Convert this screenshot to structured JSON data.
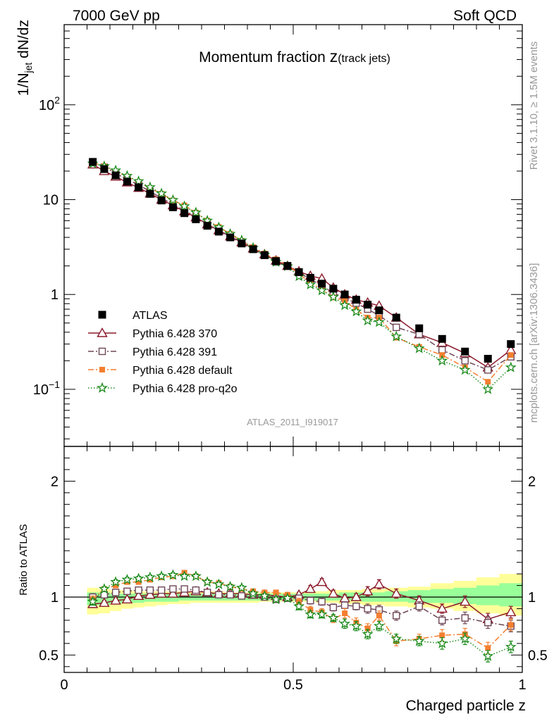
{
  "header": {
    "left_label": "7000 GeV pp",
    "right_label": "Soft QCD",
    "title_main": "Momentum fraction ",
    "title_symbol": "z",
    "title_sub": "(track jets)",
    "analysis_id": "ATLAS_2011_I919017",
    "side_rivet": "Rivet 3.1.10, ≥ 1.5M events",
    "side_mcplots": "mcplots.cern.ch [arXiv:1306.3436]"
  },
  "colors": {
    "atlas": "#000000",
    "p370": "#8b1a2b",
    "p391": "#6e4656",
    "pdefault": "#f47f30",
    "pq2o": "#1a8a1a",
    "band_outer": "#ffff99",
    "band_inner": "#99ff99"
  },
  "chart_data": [
    {
      "type": "scatter",
      "panel": "main",
      "ylabel_main": "1/N",
      "ylabel_sub": "jet",
      "ylabel_rest": " dN/dz",
      "yscale": "log",
      "xlim": [
        0,
        1
      ],
      "ylim": [
        0.025,
        700
      ],
      "y_ticks": [
        {
          "value": 0.1,
          "label_base": "10",
          "label_exp": "−1"
        },
        {
          "value": 1,
          "label_base": "1",
          "label_exp": ""
        },
        {
          "value": 10,
          "label_base": "10",
          "label_exp": ""
        },
        {
          "value": 100,
          "label_base": "10",
          "label_exp": "2"
        }
      ],
      "x": [
        0.0625,
        0.0875,
        0.1125,
        0.1375,
        0.1625,
        0.1875,
        0.2125,
        0.2375,
        0.2625,
        0.2875,
        0.3125,
        0.3375,
        0.3625,
        0.3875,
        0.4125,
        0.4375,
        0.4625,
        0.4875,
        0.5125,
        0.5375,
        0.5625,
        0.5875,
        0.6125,
        0.6375,
        0.6625,
        0.6875,
        0.725,
        0.775,
        0.825,
        0.875,
        0.925,
        0.975
      ],
      "legend_position": "center-left",
      "series": [
        {
          "name": "ATLAS",
          "key": "atlas",
          "marker": "square-filled",
          "values": [
            25,
            21,
            18,
            15.5,
            13.5,
            11.5,
            9.8,
            8.3,
            7.2,
            6.2,
            5.3,
            4.6,
            4.0,
            3.45,
            3.0,
            2.6,
            2.25,
            2.0,
            1.72,
            1.5,
            1.3,
            1.15,
            1.0,
            0.88,
            0.78,
            0.68,
            0.57,
            0.44,
            0.34,
            0.25,
            0.21,
            0.3
          ]
        },
        {
          "name": "Pythia 6.428 370",
          "key": "p370",
          "marker": "triangle-open",
          "line": "solid",
          "values": [
            23.5,
            20,
            17.5,
            15.2,
            13.3,
            11.6,
            10.0,
            8.7,
            7.5,
            6.5,
            5.5,
            4.75,
            4.1,
            3.55,
            3.05,
            2.65,
            2.28,
            2.0,
            1.75,
            1.57,
            1.47,
            1.18,
            1.0,
            0.88,
            0.82,
            0.76,
            0.57,
            0.38,
            0.31,
            0.24,
            0.17,
            0.26
          ]
        },
        {
          "name": "Pythia 6.428 391",
          "key": "p391",
          "marker": "square-open",
          "line": "dashdot",
          "values": [
            25,
            22,
            19,
            16.3,
            14.3,
            12.2,
            10.4,
            8.9,
            7.7,
            6.6,
            5.5,
            4.7,
            4.1,
            3.5,
            3.05,
            2.58,
            2.2,
            1.98,
            1.7,
            1.45,
            1.24,
            1.04,
            0.92,
            0.81,
            0.7,
            0.6,
            0.45,
            0.38,
            0.26,
            0.2,
            0.16,
            0.22
          ]
        },
        {
          "name": "Pythia 6.428 default",
          "key": "pdefault",
          "marker": "square-filled",
          "line": "dashdot",
          "values": [
            24.5,
            22.5,
            19.8,
            17.5,
            15.3,
            13.2,
            11.5,
            9.8,
            8.7,
            7.3,
            6.0,
            5.15,
            4.35,
            3.68,
            3.15,
            2.7,
            2.35,
            2.05,
            1.65,
            1.33,
            1.13,
            0.93,
            0.86,
            0.69,
            0.57,
            0.57,
            0.35,
            0.28,
            0.23,
            0.17,
            0.12,
            0.23
          ]
        },
        {
          "name": "Pythia 6.428 pro-q2o",
          "key": "pq2o",
          "marker": "star-open",
          "line": "dotted",
          "values": [
            24,
            22.5,
            20.3,
            17.8,
            15.6,
            13.5,
            11.6,
            9.9,
            8.5,
            7.3,
            6.0,
            5.1,
            4.35,
            3.72,
            3.1,
            2.62,
            2.2,
            1.98,
            1.55,
            1.27,
            1.1,
            0.94,
            0.77,
            0.66,
            0.53,
            0.51,
            0.36,
            0.27,
            0.2,
            0.16,
            0.1,
            0.17
          ]
        }
      ]
    },
    {
      "type": "scatter",
      "panel": "ratio",
      "xlabel": "Charged particle z",
      "ylabel": "Ratio to ATLAS",
      "xlim": [
        0,
        1
      ],
      "ylim": [
        0.35,
        2.3
      ],
      "x_ticks": [
        {
          "value": 0,
          "label": "0"
        },
        {
          "value": 0.5,
          "label": "0.5"
        },
        {
          "value": 1,
          "label": "1"
        }
      ],
      "y_ticks": [
        {
          "value": 0.5,
          "label": "0.5"
        },
        {
          "value": 1,
          "label": "1"
        },
        {
          "value": 2,
          "label": "2"
        }
      ],
      "x": [
        0.0625,
        0.0875,
        0.1125,
        0.1375,
        0.1625,
        0.1875,
        0.2125,
        0.2375,
        0.2625,
        0.2875,
        0.3125,
        0.3375,
        0.3625,
        0.3875,
        0.4125,
        0.4375,
        0.4625,
        0.4875,
        0.5125,
        0.5375,
        0.5625,
        0.5875,
        0.6125,
        0.6375,
        0.6625,
        0.6875,
        0.725,
        0.775,
        0.825,
        0.875,
        0.925,
        0.975
      ],
      "band": {
        "x_edges": [
          0.05,
          0.075,
          0.1,
          0.125,
          0.15,
          0.175,
          0.2,
          0.225,
          0.25,
          0.275,
          0.3,
          0.325,
          0.35,
          0.375,
          0.4,
          0.425,
          0.45,
          0.475,
          0.5,
          0.525,
          0.55,
          0.575,
          0.6,
          0.625,
          0.65,
          0.675,
          0.7,
          0.75,
          0.8,
          0.85,
          0.9,
          0.95,
          1.0
        ],
        "outer_low": [
          0.85,
          0.86,
          0.88,
          0.9,
          0.91,
          0.92,
          0.93,
          0.94,
          0.94,
          0.95,
          0.95,
          0.95,
          0.95,
          0.95,
          0.95,
          0.96,
          0.96,
          0.96,
          0.96,
          0.96,
          0.95,
          0.95,
          0.94,
          0.94,
          0.93,
          0.93,
          0.92,
          0.91,
          0.9,
          0.88,
          0.86,
          0.84
        ],
        "outer_high": [
          1.08,
          1.07,
          1.06,
          1.06,
          1.05,
          1.05,
          1.05,
          1.05,
          1.05,
          1.05,
          1.05,
          1.05,
          1.04,
          1.04,
          1.04,
          1.04,
          1.04,
          1.04,
          1.04,
          1.05,
          1.05,
          1.06,
          1.06,
          1.06,
          1.07,
          1.07,
          1.08,
          1.09,
          1.12,
          1.14,
          1.17,
          1.2
        ],
        "inner_low": [
          0.93,
          0.93,
          0.94,
          0.95,
          0.95,
          0.96,
          0.96,
          0.96,
          0.97,
          0.97,
          0.97,
          0.97,
          0.97,
          0.97,
          0.97,
          0.97,
          0.97,
          0.97,
          0.97,
          0.97,
          0.97,
          0.97,
          0.97,
          0.97,
          0.96,
          0.96,
          0.96,
          0.95,
          0.95,
          0.94,
          0.93,
          0.92
        ],
        "inner_high": [
          1.04,
          1.04,
          1.03,
          1.03,
          1.03,
          1.03,
          1.03,
          1.03,
          1.03,
          1.03,
          1.03,
          1.03,
          1.03,
          1.03,
          1.03,
          1.03,
          1.03,
          1.03,
          1.03,
          1.03,
          1.03,
          1.03,
          1.04,
          1.04,
          1.04,
          1.04,
          1.05,
          1.06,
          1.07,
          1.08,
          1.1,
          1.12
        ]
      },
      "series": [
        {
          "key": "p370",
          "marker": "triangle-open",
          "line": "solid",
          "values": [
            0.94,
            0.95,
            0.97,
            0.98,
            1.01,
            1.02,
            1.03,
            1.03,
            1.04,
            1.05,
            1.04,
            1.03,
            1.03,
            1.03,
            1.02,
            1.02,
            1.01,
            1.0,
            1.02,
            1.07,
            1.13,
            1.03,
            0.99,
            1.0,
            1.05,
            1.11,
            1.03,
            0.97,
            0.9,
            0.96,
            0.81,
            0.87
          ],
          "err": [
            0.03,
            0.02,
            0.02,
            0.02,
            0.02,
            0.02,
            0.02,
            0.02,
            0.02,
            0.02,
            0.02,
            0.02,
            0.02,
            0.02,
            0.02,
            0.02,
            0.02,
            0.02,
            0.02,
            0.03,
            0.03,
            0.03,
            0.03,
            0.03,
            0.04,
            0.04,
            0.04,
            0.04,
            0.04,
            0.05,
            0.05,
            0.05
          ]
        },
        {
          "key": "p391",
          "marker": "square-open",
          "line": "dashdot",
          "values": [
            1.0,
            1.02,
            1.04,
            1.05,
            1.06,
            1.06,
            1.06,
            1.07,
            1.07,
            1.06,
            1.04,
            1.02,
            1.02,
            1.01,
            1.02,
            1.0,
            0.98,
            0.99,
            0.99,
            0.97,
            0.96,
            0.91,
            0.93,
            0.92,
            0.9,
            0.89,
            0.84,
            0.92,
            0.8,
            0.82,
            0.78,
            0.75
          ],
          "err": [
            0.03,
            0.02,
            0.02,
            0.02,
            0.02,
            0.02,
            0.02,
            0.02,
            0.02,
            0.02,
            0.02,
            0.02,
            0.02,
            0.02,
            0.02,
            0.02,
            0.02,
            0.02,
            0.02,
            0.03,
            0.03,
            0.03,
            0.03,
            0.03,
            0.04,
            0.04,
            0.04,
            0.04,
            0.04,
            0.05,
            0.05,
            0.05
          ]
        },
        {
          "key": "pdefault",
          "marker": "square-filled",
          "line": "dashdot",
          "values": [
            0.98,
            1.07,
            1.1,
            1.13,
            1.13,
            1.15,
            1.17,
            1.18,
            1.21,
            1.18,
            1.13,
            1.12,
            1.09,
            1.07,
            1.05,
            1.04,
            1.04,
            1.02,
            0.96,
            0.89,
            0.87,
            0.81,
            0.86,
            0.78,
            0.73,
            0.84,
            0.62,
            0.64,
            0.67,
            0.68,
            0.56,
            0.76
          ],
          "err": [
            0.03,
            0.02,
            0.02,
            0.02,
            0.02,
            0.02,
            0.02,
            0.02,
            0.02,
            0.02,
            0.02,
            0.02,
            0.02,
            0.02,
            0.02,
            0.02,
            0.02,
            0.02,
            0.03,
            0.03,
            0.03,
            0.03,
            0.04,
            0.04,
            0.04,
            0.04,
            0.04,
            0.04,
            0.05,
            0.05,
            0.05,
            0.05
          ]
        },
        {
          "key": "pq2o",
          "marker": "star-open",
          "line": "dotted",
          "values": [
            0.96,
            1.07,
            1.13,
            1.15,
            1.16,
            1.17,
            1.18,
            1.19,
            1.18,
            1.18,
            1.13,
            1.11,
            1.09,
            1.08,
            1.03,
            1.01,
            0.98,
            0.99,
            0.92,
            0.85,
            0.85,
            0.82,
            0.77,
            0.75,
            0.68,
            0.75,
            0.64,
            0.62,
            0.6,
            0.64,
            0.49,
            0.57
          ],
          "err": [
            0.03,
            0.02,
            0.02,
            0.02,
            0.02,
            0.02,
            0.02,
            0.02,
            0.02,
            0.02,
            0.02,
            0.02,
            0.02,
            0.02,
            0.02,
            0.02,
            0.02,
            0.02,
            0.03,
            0.03,
            0.03,
            0.03,
            0.04,
            0.04,
            0.04,
            0.04,
            0.04,
            0.04,
            0.05,
            0.05,
            0.05,
            0.05
          ]
        }
      ]
    }
  ]
}
